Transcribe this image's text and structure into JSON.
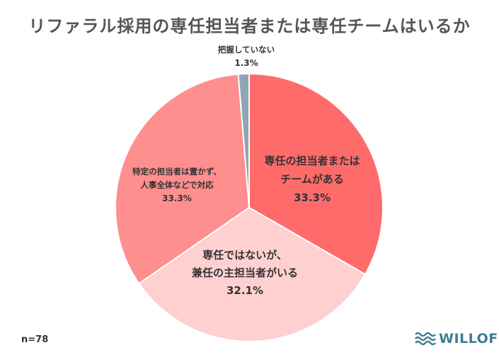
{
  "chart_data": {
    "type": "pie",
    "title": "リファラル採用の専任担当者または専任チームはいるか",
    "slices": [
      {
        "label_lines": [
          "専任の担当者または",
          "チームがある"
        ],
        "value": 33.3,
        "value_label": "33.3%",
        "color": "#ff6b6b"
      },
      {
        "label_lines": [
          "専任ではないが、",
          "兼任の主担当者がいる"
        ],
        "value": 32.1,
        "value_label": "32.1%",
        "color": "#ffd0d0"
      },
      {
        "label_lines": [
          "特定の担当者は置かず、",
          "人事全体などで対応"
        ],
        "value": 33.3,
        "value_label": "33.3%",
        "color": "#ff8e8e"
      },
      {
        "label_lines": [
          "把握していない"
        ],
        "value": 1.3,
        "value_label": "1.3%",
        "color": "#8fa5b3"
      }
    ],
    "legend": "none"
  },
  "footer": {
    "n_label": "n=78"
  },
  "logo": {
    "text": "WILLOF",
    "icon": "wave-icon",
    "color": "#3f7d93"
  }
}
